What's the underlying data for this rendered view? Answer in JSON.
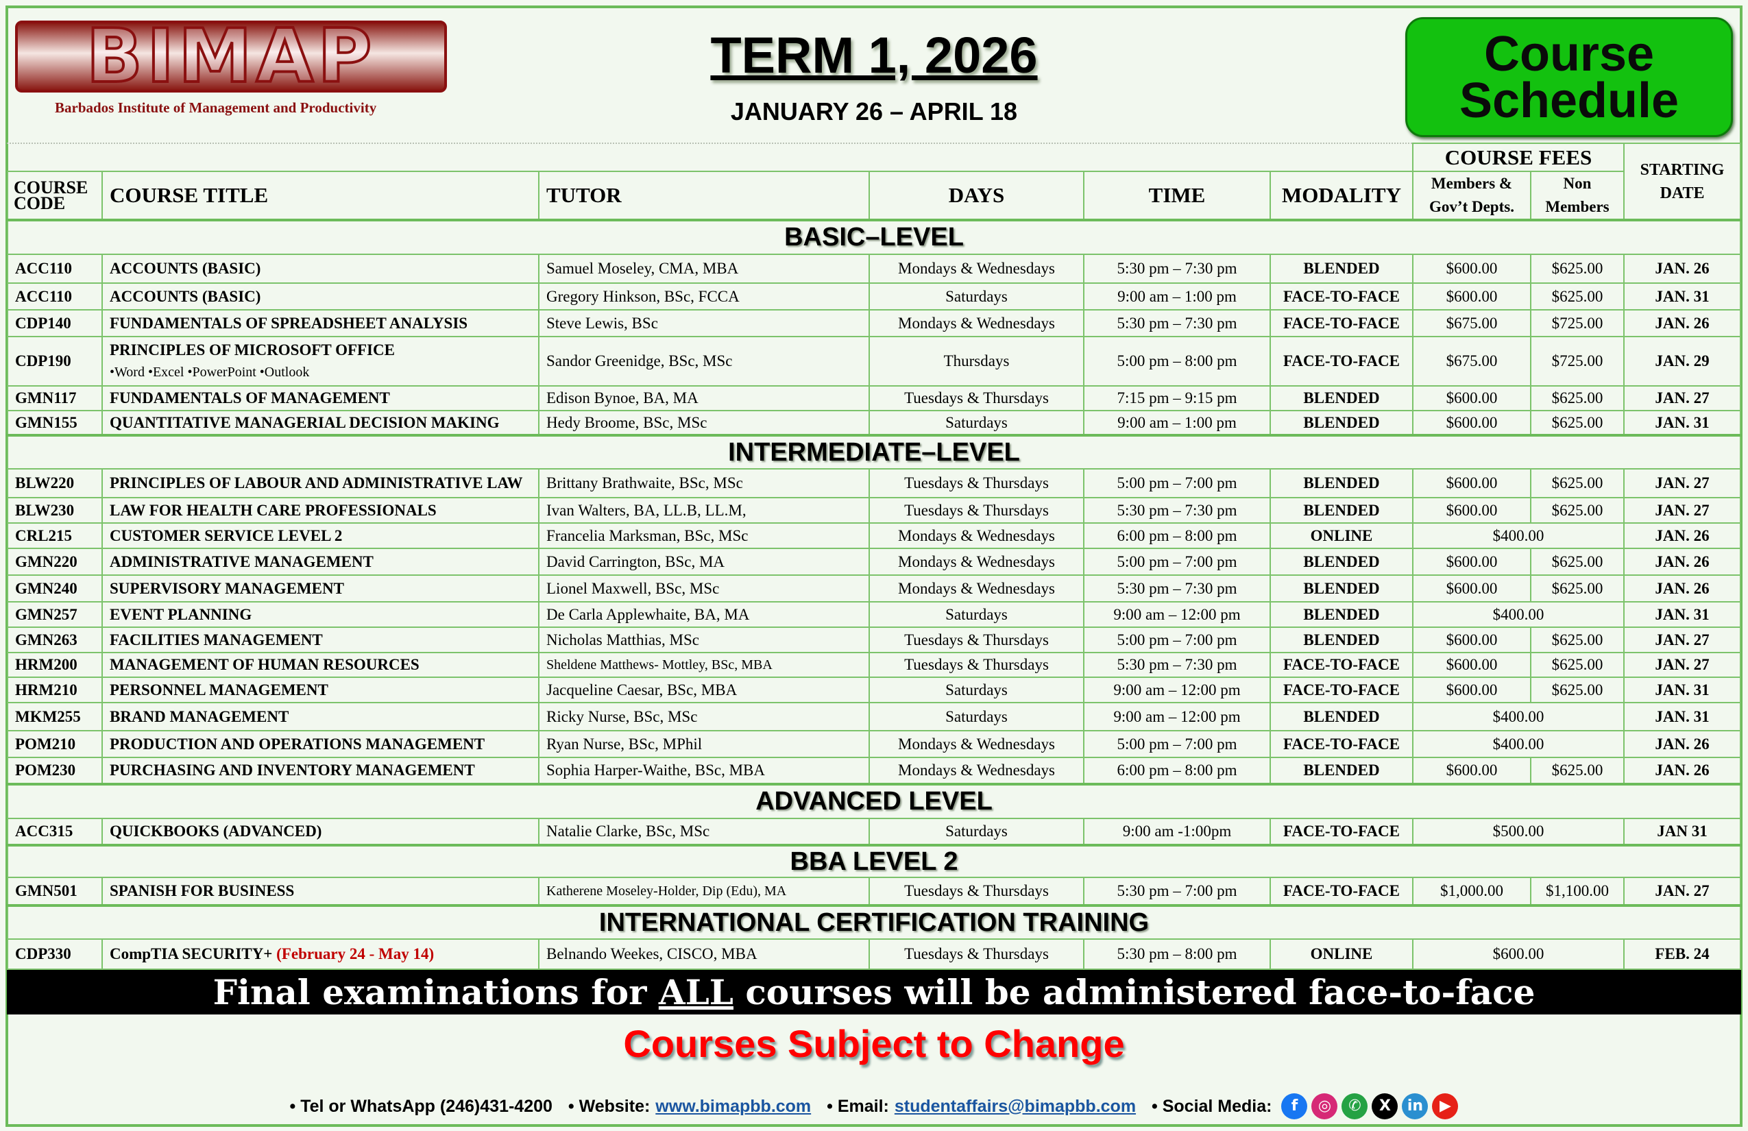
{
  "header": {
    "logo_text": "BIMAP",
    "logo_subtitle": "Barbados Institute of Management and Productivity",
    "term": "TERM 1, 2026",
    "dates": "JANUARY 26 – APRIL 18",
    "badge": "Course Schedule"
  },
  "columns": {
    "code": "COURSE CODE",
    "title": "COURSE TITLE",
    "tutor": "TUTOR",
    "days": "DAYS",
    "time": "TIME",
    "modality": "MODALITY",
    "fees": "COURSE FEES",
    "members": "Members & Gov’t Depts.",
    "non_members": "Non Members",
    "start": "STARTING DATE"
  },
  "sections": [
    {
      "name": "BASIC–LEVEL",
      "rows": [
        {
          "code": "ACC110",
          "title": "ACCOUNTS (BASIC)",
          "tutor": "Samuel Moseley, CMA, MBA",
          "days": "Mondays & Wednesdays",
          "time": "5:30 pm – 7:30 pm",
          "modality": "BLENDED",
          "members": "$600.00",
          "non_members": "$625.00",
          "start": "JAN. 26"
        },
        {
          "code": "ACC110",
          "title": "ACCOUNTS (BASIC)",
          "tutor": "Gregory Hinkson, BSc, FCCA",
          "days": "Saturdays",
          "time": "9:00 am – 1:00 pm",
          "modality": "FACE-TO-FACE",
          "members": "$600.00",
          "non_members": "$625.00",
          "start": "JAN. 31"
        },
        {
          "code": "CDP140",
          "title": "FUNDAMENTALS OF SPREADSHEET ANALYSIS",
          "tutor": "Steve Lewis, BSc",
          "days": "Mondays & Wednesdays",
          "time": "5:30 pm – 7:30 pm",
          "modality": "FACE-TO-FACE",
          "members": "$675.00",
          "non_members": "$725.00",
          "start": "JAN. 26"
        },
        {
          "code": "CDP190",
          "title": "PRINCIPLES OF MICROSOFT OFFICE",
          "subtitle": "•Word •Excel •PowerPoint •Outlook",
          "tutor": "Sandor Greenidge, BSc, MSc",
          "days": "Thursdays",
          "time": "5:00 pm – 8:00 pm",
          "modality": "FACE-TO-FACE",
          "members": "$675.00",
          "non_members": "$725.00",
          "start": "JAN. 29"
        },
        {
          "code": "GMN117",
          "title": "FUNDAMENTALS OF MANAGEMENT",
          "tutor": "Edison Bynoe, BA, MA",
          "days": "Tuesdays & Thursdays",
          "time": "7:15 pm – 9:15 pm",
          "modality": "BLENDED",
          "members": "$600.00",
          "non_members": "$625.00",
          "start": "JAN. 27"
        },
        {
          "code": "GMN155",
          "title": "QUANTITATIVE MANAGERIAL DECISION MAKING",
          "tutor": "Hedy Broome, BSc, MSc",
          "days": "Saturdays",
          "time": "9:00 am – 1:00 pm",
          "modality": "BLENDED",
          "members": "$600.00",
          "non_members": "$625.00",
          "start": "JAN. 31"
        }
      ]
    },
    {
      "name": "INTERMEDIATE–LEVEL",
      "rows": [
        {
          "code": "BLW220",
          "title": "PRINCIPLES OF LABOUR AND ADMINISTRATIVE LAW",
          "tutor": "Brittany Brathwaite, BSc, MSc",
          "days": "Tuesdays & Thursdays",
          "time": "5:00 pm – 7:00 pm",
          "modality": "BLENDED",
          "members": "$600.00",
          "non_members": "$625.00",
          "start": "JAN. 27"
        },
        {
          "code": "BLW230",
          "title": "LAW FOR HEALTH CARE PROFESSIONALS",
          "tutor": "Ivan Walters, BA, LL.B, LL.M,",
          "days": "Tuesdays & Thursdays",
          "time": "5:30 pm – 7:30 pm",
          "modality": "BLENDED",
          "members": "$600.00",
          "non_members": "$625.00",
          "start": "JAN. 27"
        },
        {
          "code": "CRL215",
          "title": "CUSTOMER SERVICE LEVEL 2",
          "tutor": "Francelia Marksman, BSc, MSc",
          "days": "Mondays & Wednesdays",
          "time": "6:00 pm – 8:00 pm",
          "modality": "ONLINE",
          "fee": "$400.00",
          "start": "JAN. 26"
        },
        {
          "code": "GMN220",
          "title": "ADMINISTRATIVE MANAGEMENT",
          "tutor": "David Carrington, BSc, MA",
          "days": "Mondays & Wednesdays",
          "time": "5:00 pm – 7:00 pm",
          "modality": "BLENDED",
          "members": "$600.00",
          "non_members": "$625.00",
          "start": "JAN. 26"
        },
        {
          "code": "GMN240",
          "title": "SUPERVISORY MANAGEMENT",
          "tutor": "Lionel Maxwell, BSc, MSc",
          "days": "Mondays & Wednesdays",
          "time": "5:30 pm – 7:30 pm",
          "modality": "BLENDED",
          "members": "$600.00",
          "non_members": "$625.00",
          "start": "JAN. 26"
        },
        {
          "code": "GMN257",
          "title": "EVENT PLANNING",
          "tutor": "De Carla Applewhaite, BA, MA",
          "days": "Saturdays",
          "time": "9:00 am – 12:00 pm",
          "modality": "BLENDED",
          "fee": "$400.00",
          "start": "JAN. 31"
        },
        {
          "code": "GMN263",
          "title": "FACILITIES MANAGEMENT",
          "tutor": "Nicholas Matthias, MSc",
          "days": "Tuesdays & Thursdays",
          "time": "5:00 pm – 7:00 pm",
          "modality": "BLENDED",
          "members": "$600.00",
          "non_members": "$625.00",
          "start": "JAN. 27"
        },
        {
          "code": "HRM200",
          "title": "MANAGEMENT OF HUMAN RESOURCES",
          "tutor": "Sheldene Matthews- Mottley, BSc, MBA",
          "days": "Tuesdays & Thursdays",
          "time": "5:30 pm – 7:30 pm",
          "modality": "FACE-TO-FACE",
          "members": "$600.00",
          "non_members": "$625.00",
          "start": "JAN. 27"
        },
        {
          "code": "HRM210",
          "title": "PERSONNEL MANAGEMENT",
          "tutor": "Jacqueline Caesar, BSc, MBA",
          "days": "Saturdays",
          "time": "9:00 am – 12:00 pm",
          "modality": "FACE-TO-FACE",
          "members": "$600.00",
          "non_members": "$625.00",
          "start": "JAN. 31"
        },
        {
          "code": "MKM255",
          "title": "BRAND MANAGEMENT",
          "tutor": "Ricky Nurse, BSc,  MSc",
          "days": "Saturdays",
          "time": "9:00 am – 12:00 pm",
          "modality": "BLENDED",
          "fee": "$400.00",
          "start": "JAN. 31"
        },
        {
          "code": "POM210",
          "title": "PRODUCTION AND OPERATIONS MANAGEMENT",
          "tutor": "Ryan Nurse, BSc, MPhil",
          "days": "Mondays & Wednesdays",
          "time": "5:00 pm – 7:00 pm",
          "modality": "FACE-TO-FACE",
          "fee": "$400.00",
          "start": "JAN. 26"
        },
        {
          "code": "POM230",
          "title": "PURCHASING AND INVENTORY MANAGEMENT",
          "tutor": "Sophia Harper-Waithe, BSc, MBA",
          "days": "Mondays & Wednesdays",
          "time": "6:00 pm – 8:00 pm",
          "modality": "BLENDED",
          "members": "$600.00",
          "non_members": "$625.00",
          "start": "JAN. 26"
        }
      ]
    },
    {
      "name": "ADVANCED LEVEL",
      "rows": [
        {
          "code": "ACC315",
          "title": "QUICKBOOKS (ADVANCED)",
          "tutor": "Natalie Clarke, BSc, MSc",
          "days": "Saturdays",
          "time": "9:00 am -1:00pm",
          "modality": "FACE-TO-FACE",
          "fee": "$500.00",
          "start": "JAN 31"
        }
      ]
    },
    {
      "name": "BBA LEVEL 2",
      "rows": [
        {
          "code": "GMN501",
          "title": "SPANISH FOR BUSINESS",
          "tutor": "Katherene Moseley-Holder, Dip (Edu), MA",
          "days": "Tuesdays & Thursdays",
          "time": "5:30 pm – 7:00 pm",
          "modality": "FACE-TO-FACE",
          "members": "$1,000.00",
          "non_members": "$1,100.00",
          "start": "JAN. 27"
        }
      ]
    },
    {
      "name": "INTERNATIONAL CERTIFICATION TRAINING",
      "rows": [
        {
          "code": "CDP330",
          "title": "CompTIA SECURITY+",
          "title_note": "(February 24 - May 14)",
          "tutor": "Belnando Weekes, CISCO, MBA",
          "days": "Tuesdays & Thursdays",
          "time": "5:30 pm – 8:00 pm",
          "modality": "ONLINE",
          "fee": "$600.00",
          "start": "FEB. 24"
        }
      ]
    }
  ],
  "notice": {
    "exam_pre": "Final examinations for ",
    "exam_all": "ALL",
    "exam_post": " courses will be administered face-to-face",
    "change": "Courses Subject to Change"
  },
  "footer": {
    "tel": "• Tel or WhatsApp (246)431-4200",
    "website_label": "•  Website:",
    "website": "www.bimapbb.com",
    "email_label": "• Email:",
    "email": "studentaffairs@bimapbb.com",
    "social_label": "• Social Media:",
    "social": [
      {
        "icon": "facebook-icon",
        "glyph": "f",
        "color": "#1877f2"
      },
      {
        "icon": "instagram-icon",
        "glyph": "◎",
        "color": "#d62976"
      },
      {
        "icon": "whatsapp-icon",
        "glyph": "✆",
        "color": "#25a244"
      },
      {
        "icon": "x-icon",
        "glyph": "X",
        "color": "#000000"
      },
      {
        "icon": "linkedin-icon",
        "glyph": "in",
        "color": "#2a8fd0"
      },
      {
        "icon": "youtube-icon",
        "glyph": "▶",
        "color": "#e62117"
      }
    ]
  }
}
